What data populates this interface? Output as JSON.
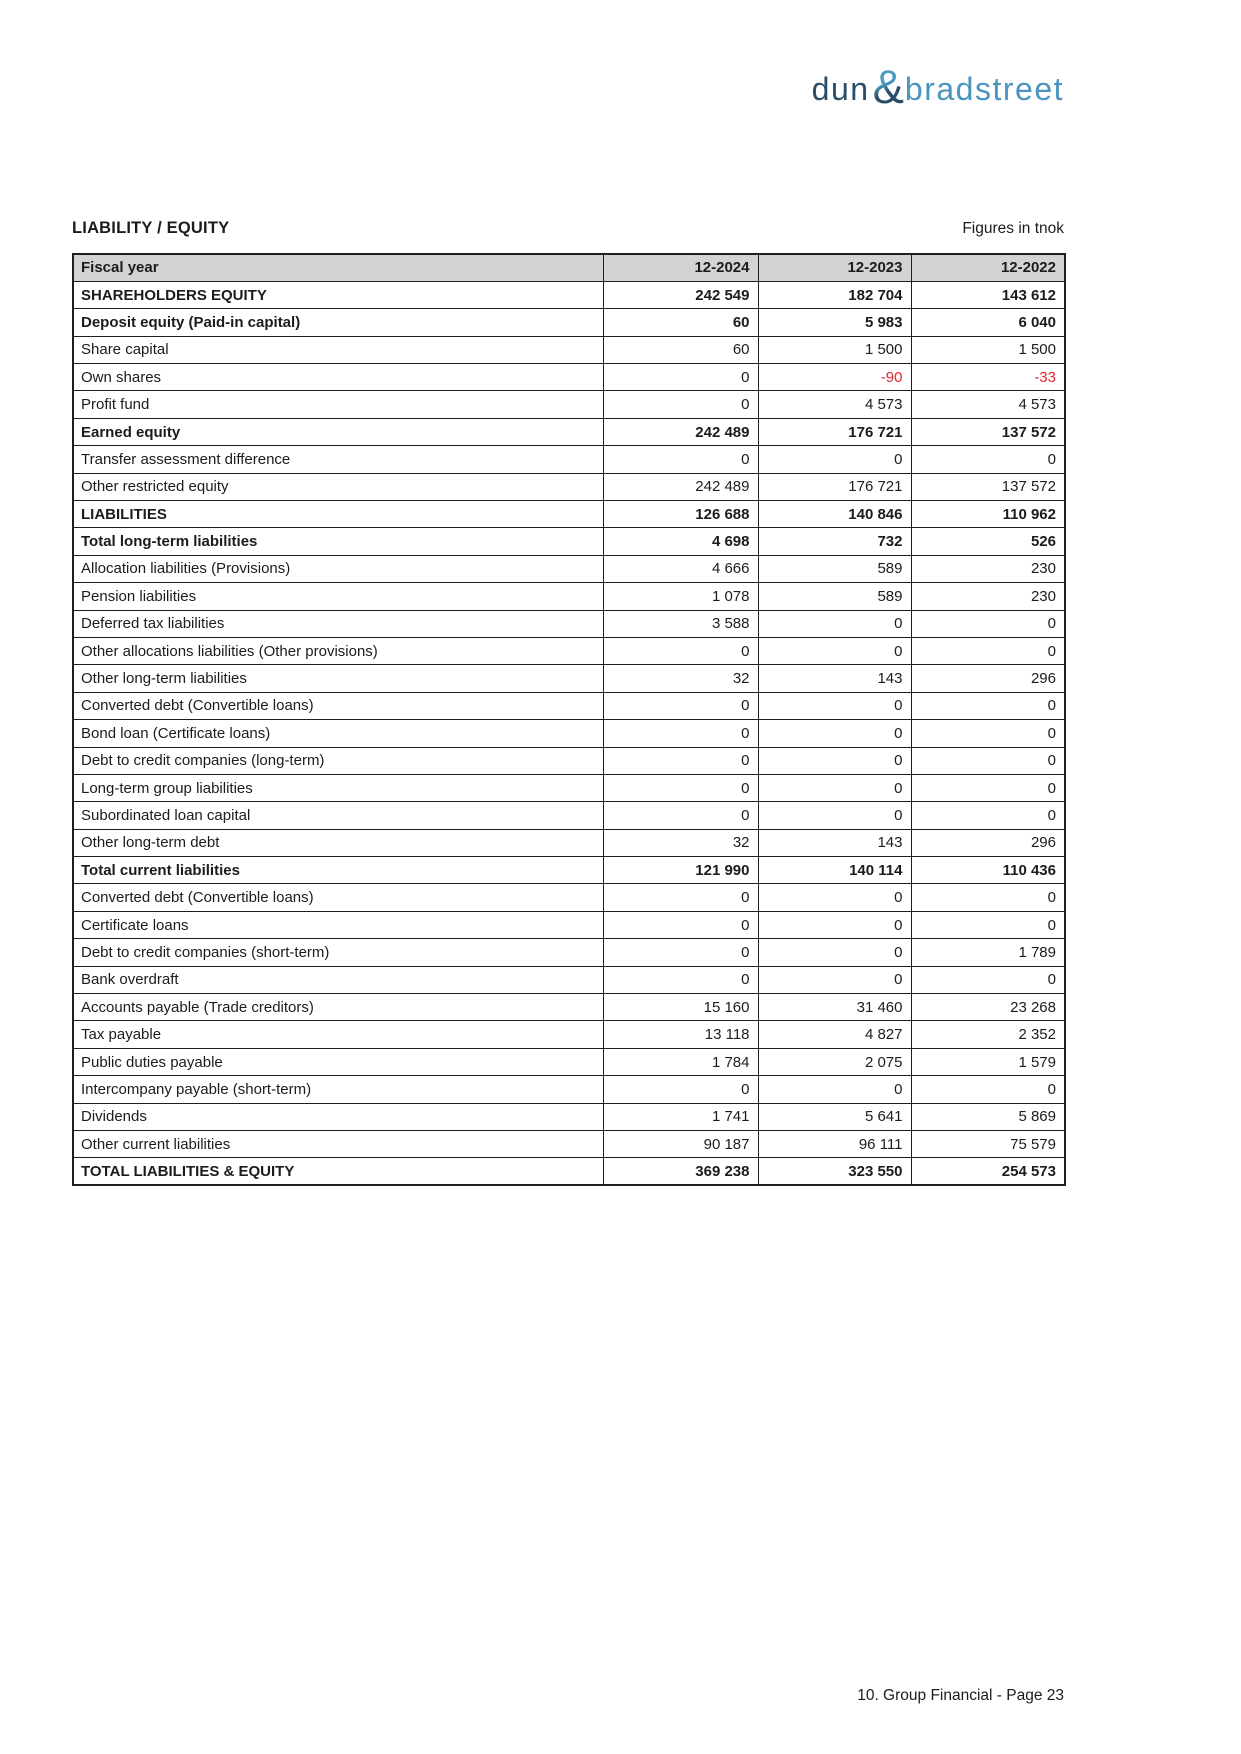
{
  "logo": {
    "part1": "dun",
    "ampersand": "&",
    "part2": "bradstreet"
  },
  "header": {
    "title": "LIABILITY / EQUITY",
    "unit_note": "Figures in tnok"
  },
  "table": {
    "columns": [
      "Fiscal year",
      "12-2024",
      "12-2023",
      "12-2022"
    ],
    "rows": [
      {
        "label": "SHAREHOLDERS EQUITY",
        "values": [
          "242 549",
          "182 704",
          "143 612"
        ],
        "bold": true
      },
      {
        "label": "Deposit equity (Paid-in capital)",
        "values": [
          "60",
          "5 983",
          "6 040"
        ],
        "bold": true
      },
      {
        "label": "Share capital",
        "values": [
          "60",
          "1 500",
          "1 500"
        ],
        "bold": false
      },
      {
        "label": "Own shares",
        "values": [
          "0",
          "-90",
          "-33"
        ],
        "bold": false
      },
      {
        "label": "Profit fund",
        "values": [
          "0",
          "4 573",
          "4 573"
        ],
        "bold": false
      },
      {
        "label": "Earned equity",
        "values": [
          "242 489",
          "176 721",
          "137 572"
        ],
        "bold": true
      },
      {
        "label": "Transfer assessment difference",
        "values": [
          "0",
          "0",
          "0"
        ],
        "bold": false
      },
      {
        "label": "Other restricted equity",
        "values": [
          "242 489",
          "176 721",
          "137 572"
        ],
        "bold": false
      },
      {
        "label": "LIABILITIES",
        "values": [
          "126 688",
          "140 846",
          "110 962"
        ],
        "bold": true
      },
      {
        "label": "Total long-term liabilities",
        "values": [
          "4 698",
          "732",
          "526"
        ],
        "bold": true
      },
      {
        "label": "Allocation liabilities (Provisions)",
        "values": [
          "4 666",
          "589",
          "230"
        ],
        "bold": false
      },
      {
        "label": "Pension liabilities",
        "values": [
          "1 078",
          "589",
          "230"
        ],
        "bold": false
      },
      {
        "label": "Deferred tax liabilities",
        "values": [
          "3 588",
          "0",
          "0"
        ],
        "bold": false
      },
      {
        "label": "Other allocations liabilities (Other provisions)",
        "values": [
          "0",
          "0",
          "0"
        ],
        "bold": false
      },
      {
        "label": "Other long-term liabilities",
        "values": [
          "32",
          "143",
          "296"
        ],
        "bold": false
      },
      {
        "label": "Converted debt (Convertible loans)",
        "values": [
          "0",
          "0",
          "0"
        ],
        "bold": false
      },
      {
        "label": "Bond loan (Certificate loans)",
        "values": [
          "0",
          "0",
          "0"
        ],
        "bold": false
      },
      {
        "label": "Debt to credit companies (long-term)",
        "values": [
          "0",
          "0",
          "0"
        ],
        "bold": false
      },
      {
        "label": "Long-term group liabilities",
        "values": [
          "0",
          "0",
          "0"
        ],
        "bold": false
      },
      {
        "label": "Subordinated loan capital",
        "values": [
          "0",
          "0",
          "0"
        ],
        "bold": false
      },
      {
        "label": "Other long-term debt",
        "values": [
          "32",
          "143",
          "296"
        ],
        "bold": false
      },
      {
        "label": "Total current liabilities",
        "values": [
          "121 990",
          "140 114",
          "110 436"
        ],
        "bold": true
      },
      {
        "label": "Converted debt (Convertible loans)",
        "values": [
          "0",
          "0",
          "0"
        ],
        "bold": false
      },
      {
        "label": "Certificate loans",
        "values": [
          "0",
          "0",
          "0"
        ],
        "bold": false
      },
      {
        "label": "Debt to credit companies (short-term)",
        "values": [
          "0",
          "0",
          "1 789"
        ],
        "bold": false
      },
      {
        "label": "Bank overdraft",
        "values": [
          "0",
          "0",
          "0"
        ],
        "bold": false
      },
      {
        "label": "Accounts payable (Trade creditors)",
        "values": [
          "15 160",
          "31 460",
          "23 268"
        ],
        "bold": false
      },
      {
        "label": "Tax payable",
        "values": [
          "13 118",
          "4 827",
          "2 352"
        ],
        "bold": false
      },
      {
        "label": "Public duties payable",
        "values": [
          "1 784",
          "2 075",
          "1 579"
        ],
        "bold": false
      },
      {
        "label": "Intercompany payable (short-term)",
        "values": [
          "0",
          "0",
          "0"
        ],
        "bold": false
      },
      {
        "label": "Dividends",
        "values": [
          "1 741",
          "5 641",
          "5 869"
        ],
        "bold": false
      },
      {
        "label": "Other current liabilities",
        "values": [
          "90 187",
          "96 111",
          "75 579"
        ],
        "bold": false
      },
      {
        "label": "TOTAL LIABILITIES & EQUITY",
        "values": [
          "369 238",
          "323 550",
          "254 573"
        ],
        "bold": true
      }
    ]
  },
  "footer": {
    "text": "10. Group Financial - Page 23"
  },
  "colors": {
    "header_bg": "#d3d3d3",
    "negative": "#e0262b",
    "border": "#1e1e1e",
    "logo_navy": "#2b4e68",
    "logo_blue": "#4a94be",
    "logo_light_blue": "#4e9cc0"
  }
}
